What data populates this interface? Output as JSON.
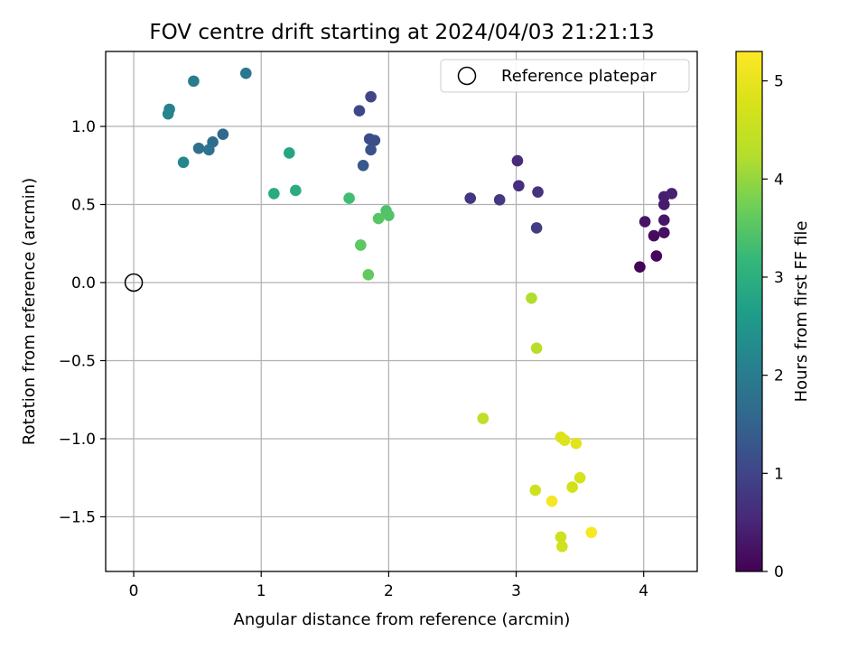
{
  "chart_data": {
    "type": "scatter",
    "title": "FOV centre drift starting at 2024/04/03 21:21:13",
    "xlabel": "Angular distance from reference (arcmin)",
    "ylabel": "Rotation from reference (arcmin)",
    "xlim": [
      -0.22,
      4.42
    ],
    "ylim": [
      -1.85,
      1.48
    ],
    "xticks": [
      0,
      1,
      2,
      3,
      4
    ],
    "xtick_labels": [
      "0",
      "1",
      "2",
      "3",
      "4"
    ],
    "yticks": [
      -1.5,
      -1.0,
      -0.5,
      0.0,
      0.5,
      1.0
    ],
    "ytick_labels": [
      "−1.5",
      "−1.0",
      "−0.5",
      "0.0",
      "0.5",
      "1.0"
    ],
    "grid": true,
    "colorbar": {
      "label": "Hours from first FF file",
      "colormap": "viridis",
      "range": [
        0,
        5.3
      ],
      "ticks": [
        0,
        1,
        2,
        3,
        4,
        5
      ],
      "tick_labels": [
        "0",
        "1",
        "2",
        "3",
        "4",
        "5"
      ]
    },
    "legend": {
      "position": "top-right",
      "entries": [
        {
          "label": "Reference platepar",
          "marker": "open-circle"
        }
      ]
    },
    "reference": {
      "x": 0,
      "y": 0
    },
    "points": [
      {
        "x": 3.97,
        "y": 0.1,
        "hours": 0.05
      },
      {
        "x": 4.1,
        "y": 0.17,
        "hours": 0.1
      },
      {
        "x": 4.08,
        "y": 0.3,
        "hours": 0.15
      },
      {
        "x": 4.16,
        "y": 0.32,
        "hours": 0.2
      },
      {
        "x": 4.01,
        "y": 0.39,
        "hours": 0.25
      },
      {
        "x": 4.16,
        "y": 0.4,
        "hours": 0.3
      },
      {
        "x": 4.16,
        "y": 0.5,
        "hours": 0.35
      },
      {
        "x": 4.16,
        "y": 0.55,
        "hours": 0.4
      },
      {
        "x": 4.22,
        "y": 0.57,
        "hours": 0.45
      },
      {
        "x": 3.01,
        "y": 0.78,
        "hours": 0.6
      },
      {
        "x": 3.02,
        "y": 0.62,
        "hours": 0.65
      },
      {
        "x": 3.17,
        "y": 0.58,
        "hours": 0.7
      },
      {
        "x": 2.64,
        "y": 0.54,
        "hours": 0.75
      },
      {
        "x": 2.87,
        "y": 0.53,
        "hours": 0.8
      },
      {
        "x": 3.16,
        "y": 0.35,
        "hours": 0.85
      },
      {
        "x": 1.86,
        "y": 1.19,
        "hours": 1.0
      },
      {
        "x": 1.77,
        "y": 1.1,
        "hours": 1.05
      },
      {
        "x": 1.85,
        "y": 0.92,
        "hours": 1.1
      },
      {
        "x": 1.89,
        "y": 0.91,
        "hours": 1.15
      },
      {
        "x": 1.86,
        "y": 0.85,
        "hours": 1.2
      },
      {
        "x": 1.8,
        "y": 0.75,
        "hours": 1.3
      },
      {
        "x": 0.7,
        "y": 0.95,
        "hours": 1.6
      },
      {
        "x": 0.62,
        "y": 0.9,
        "hours": 1.7
      },
      {
        "x": 0.51,
        "y": 0.86,
        "hours": 1.75
      },
      {
        "x": 0.59,
        "y": 0.85,
        "hours": 1.8
      },
      {
        "x": 0.88,
        "y": 1.34,
        "hours": 1.9
      },
      {
        "x": 0.47,
        "y": 1.29,
        "hours": 2.0
      },
      {
        "x": 0.28,
        "y": 1.11,
        "hours": 2.1
      },
      {
        "x": 0.27,
        "y": 1.08,
        "hours": 2.15
      },
      {
        "x": 0.39,
        "y": 0.77,
        "hours": 2.2
      },
      {
        "x": 1.22,
        "y": 0.83,
        "hours": 2.8
      },
      {
        "x": 1.1,
        "y": 0.57,
        "hours": 2.9
      },
      {
        "x": 1.27,
        "y": 0.59,
        "hours": 2.95
      },
      {
        "x": 1.69,
        "y": 0.54,
        "hours": 3.3
      },
      {
        "x": 1.98,
        "y": 0.46,
        "hours": 3.4
      },
      {
        "x": 2.0,
        "y": 0.43,
        "hours": 3.45
      },
      {
        "x": 1.92,
        "y": 0.41,
        "hours": 3.5
      },
      {
        "x": 1.78,
        "y": 0.24,
        "hours": 3.55
      },
      {
        "x": 1.84,
        "y": 0.05,
        "hours": 3.6
      },
      {
        "x": 3.12,
        "y": -0.1,
        "hours": 4.2
      },
      {
        "x": 3.16,
        "y": -0.42,
        "hours": 4.3
      },
      {
        "x": 2.74,
        "y": -0.87,
        "hours": 4.4
      },
      {
        "x": 3.15,
        "y": -1.33,
        "hours": 4.6
      },
      {
        "x": 3.35,
        "y": -1.63,
        "hours": 4.6
      },
      {
        "x": 3.36,
        "y": -1.69,
        "hours": 4.65
      },
      {
        "x": 3.44,
        "y": -1.31,
        "hours": 4.7
      },
      {
        "x": 3.5,
        "y": -1.25,
        "hours": 4.75
      },
      {
        "x": 3.35,
        "y": -0.99,
        "hours": 4.8
      },
      {
        "x": 3.38,
        "y": -1.01,
        "hours": 4.85
      },
      {
        "x": 3.47,
        "y": -1.03,
        "hours": 4.9
      },
      {
        "x": 3.28,
        "y": -1.4,
        "hours": 5.2
      },
      {
        "x": 3.59,
        "y": -1.6,
        "hours": 5.25
      }
    ]
  }
}
